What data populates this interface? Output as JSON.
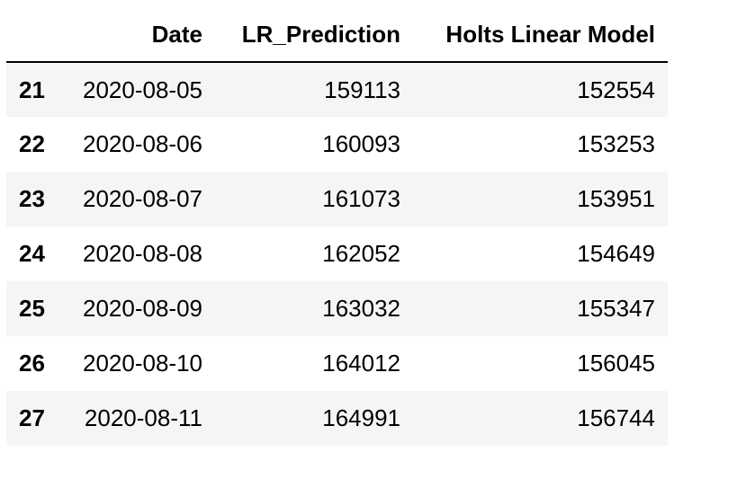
{
  "table": {
    "columns": {
      "index": "",
      "date": "Date",
      "lr_prediction": "LR_Prediction",
      "holts": "Holts Linear Model"
    },
    "rows": [
      {
        "index": "21",
        "date": "2020-08-05",
        "lr_prediction": "159113",
        "holts": "152554"
      },
      {
        "index": "22",
        "date": "2020-08-06",
        "lr_prediction": "160093",
        "holts": "153253"
      },
      {
        "index": "23",
        "date": "2020-08-07",
        "lr_prediction": "161073",
        "holts": "153951"
      },
      {
        "index": "24",
        "date": "2020-08-08",
        "lr_prediction": "162052",
        "holts": "154649"
      },
      {
        "index": "25",
        "date": "2020-08-09",
        "lr_prediction": "163032",
        "holts": "155347"
      },
      {
        "index": "26",
        "date": "2020-08-10",
        "lr_prediction": "164012",
        "holts": "156045"
      },
      {
        "index": "27",
        "date": "2020-08-11",
        "lr_prediction": "164991",
        "holts": "156744"
      }
    ]
  }
}
